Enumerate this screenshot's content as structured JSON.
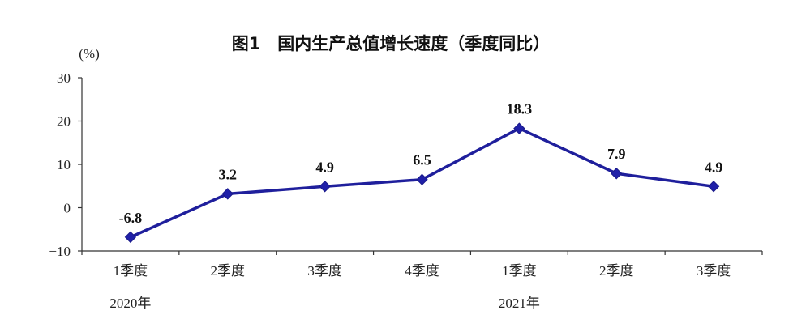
{
  "chart_data": {
    "type": "line",
    "title": "图1　国内生产总值增长速度（季度同比）",
    "unit_label": "(%)",
    "categories": [
      "1季度",
      "2季度",
      "3季度",
      "4季度",
      "1季度",
      "2季度",
      "3季度"
    ],
    "year_labels": [
      {
        "label": "2020年",
        "category_index": 0
      },
      {
        "label": "2021年",
        "category_index": 4
      }
    ],
    "series": [
      {
        "values": [
          -6.8,
          3.2,
          4.9,
          6.5,
          18.3,
          7.9,
          4.9
        ],
        "color": "#1f1f9c"
      }
    ],
    "data_labels": [
      "-6.8",
      "3.2",
      "4.9",
      "6.5",
      "18.3",
      "7.9",
      "4.9"
    ],
    "yticks": [
      {
        "value": 30,
        "label": "30"
      },
      {
        "value": 20,
        "label": "20"
      },
      {
        "value": 10,
        "label": "10"
      },
      {
        "value": 0,
        "label": "0"
      },
      {
        "value": -10,
        "label": "−10"
      }
    ],
    "ylim": [
      -10,
      30
    ],
    "grid": false,
    "marker": "diamond",
    "xlabel": "",
    "ylabel": ""
  }
}
